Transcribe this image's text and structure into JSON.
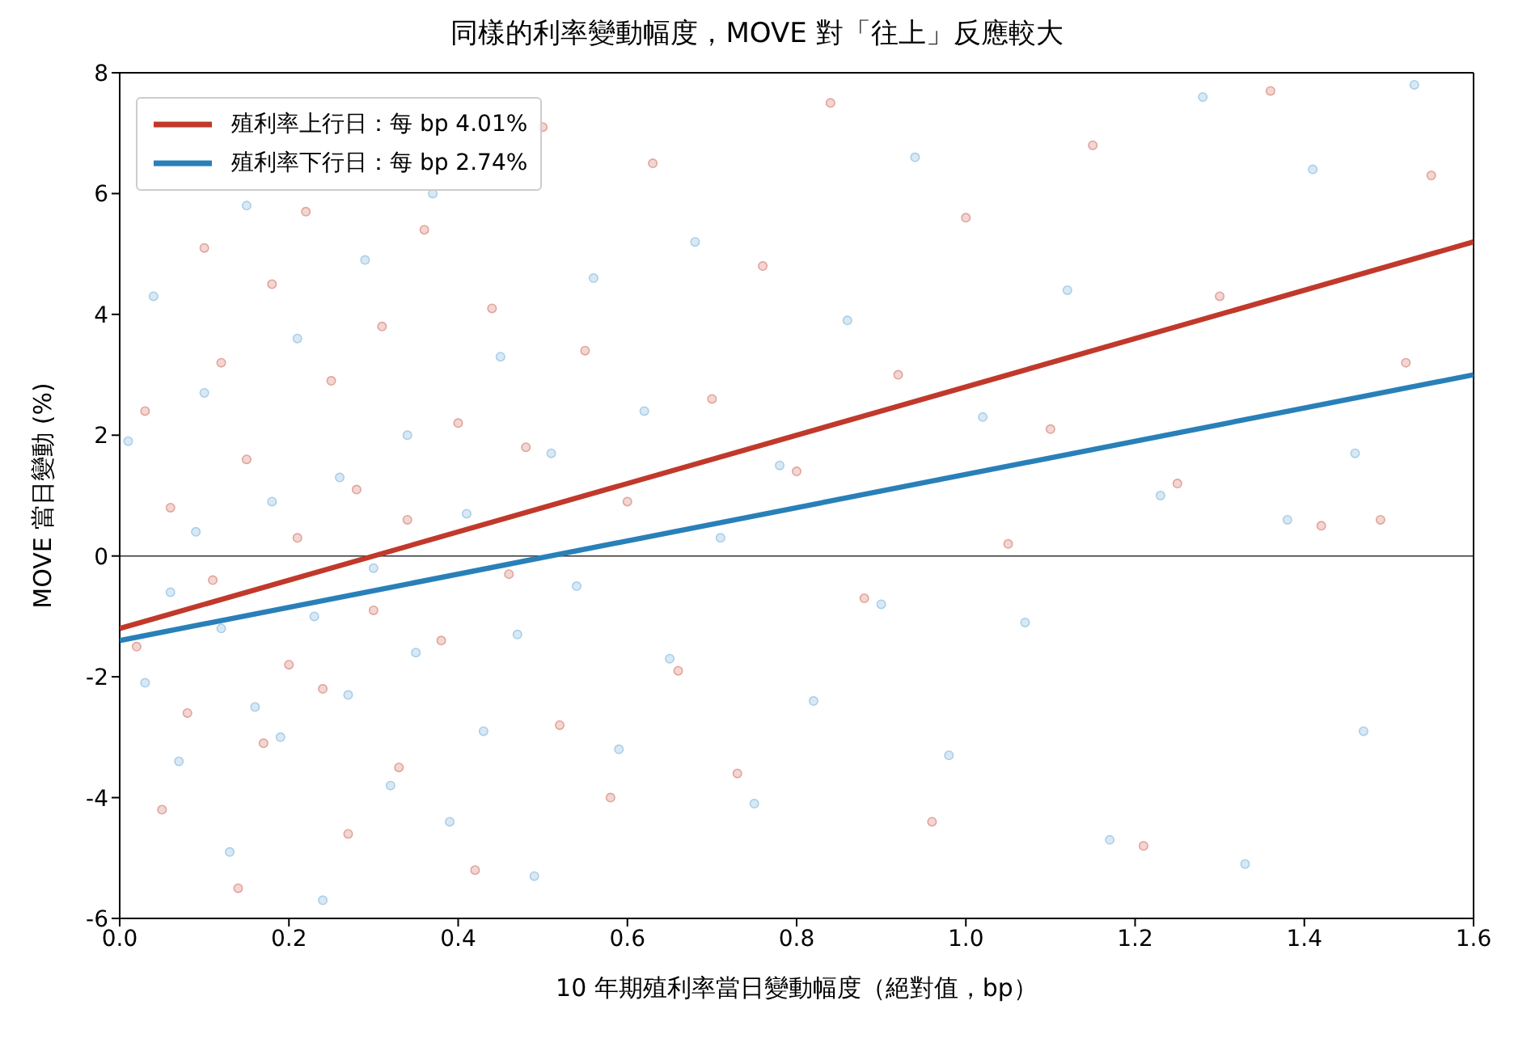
{
  "chart_data": {
    "type": "scatter",
    "title": "同樣的利率變動幅度，MOVE 對「往上」反應較大",
    "xlabel": "10 年期殖利率當日變動幅度（絕對值，bp）",
    "ylabel": "MOVE 當日變動 (%)",
    "xlim": [
      0,
      1.6
    ],
    "xticks": [
      {
        "value": 0,
        "label": "0.0"
      },
      0.2,
      0.4,
      0.6,
      0.8,
      {
        "value": 1,
        "label": "1.0"
      },
      1.2,
      1.4,
      1.6
    ],
    "ylim": [
      -6,
      8
    ],
    "yticks": [
      -6,
      -4,
      -2,
      0,
      2,
      4,
      6,
      8
    ],
    "grid": false,
    "legend": "top left",
    "ref_lines": [
      {
        "axis": "y",
        "value": 0,
        "color": "#333333"
      }
    ],
    "series": [
      {
        "marker": "circle",
        "color": "#e3a39b",
        "x": [
          0.02,
          0.03,
          0.05,
          0.06,
          0.08,
          0.1,
          0.11,
          0.12,
          0.14,
          0.15,
          0.17,
          0.18,
          0.2,
          0.21,
          0.22,
          0.24,
          0.25,
          0.27,
          0.28,
          0.3,
          0.31,
          0.33,
          0.34,
          0.36,
          0.38,
          0.4,
          0.42,
          0.44,
          0.46,
          0.48,
          0.5,
          0.52,
          0.55,
          0.58,
          0.6,
          0.63,
          0.66,
          0.7,
          0.73,
          0.76,
          0.8,
          0.84,
          0.88,
          0.92,
          0.96,
          1.0,
          1.05,
          1.1,
          1.15,
          1.21,
          1.25,
          1.3,
          1.36,
          1.42,
          1.49,
          1.52,
          1.55
        ],
        "values": [
          -1.5,
          2.4,
          -4.2,
          0.8,
          -2.6,
          5.1,
          -0.4,
          3.2,
          -5.5,
          1.6,
          -3.1,
          4.5,
          -1.8,
          0.3,
          5.7,
          -2.2,
          2.9,
          -4.6,
          1.1,
          -0.9,
          3.8,
          -3.5,
          0.6,
          5.4,
          -1.4,
          2.2,
          -5.2,
          4.1,
          -0.3,
          1.8,
          7.1,
          -2.8,
          3.4,
          -4.0,
          0.9,
          6.5,
          -1.9,
          2.6,
          -3.6,
          4.8,
          1.4,
          7.5,
          -0.7,
          3.0,
          -4.4,
          5.6,
          0.2,
          2.1,
          6.8,
          -4.8,
          1.2,
          4.3,
          7.7,
          0.5,
          0.6,
          3.2,
          6.3
        ]
      },
      {
        "marker": "circle",
        "color": "#a9cfe8",
        "x": [
          0.01,
          0.03,
          0.04,
          0.06,
          0.07,
          0.09,
          0.1,
          0.12,
          0.13,
          0.15,
          0.16,
          0.18,
          0.19,
          0.21,
          0.23,
          0.24,
          0.26,
          0.27,
          0.29,
          0.3,
          0.32,
          0.34,
          0.35,
          0.37,
          0.39,
          0.41,
          0.43,
          0.45,
          0.47,
          0.49,
          0.51,
          0.54,
          0.56,
          0.59,
          0.62,
          0.65,
          0.68,
          0.71,
          0.75,
          0.78,
          0.82,
          0.86,
          0.9,
          0.94,
          0.98,
          1.02,
          1.07,
          1.12,
          1.17,
          1.23,
          1.28,
          1.33,
          1.38,
          1.41,
          1.46,
          1.47,
          1.53
        ],
        "values": [
          1.9,
          -2.1,
          4.3,
          -0.6,
          -3.4,
          0.4,
          2.7,
          -1.2,
          -4.9,
          5.8,
          -2.5,
          0.9,
          -3.0,
          3.6,
          -1.0,
          -5.7,
          1.3,
          -2.3,
          4.9,
          -0.2,
          -3.8,
          2.0,
          -1.6,
          6.0,
          -4.4,
          0.7,
          -2.9,
          3.3,
          -1.3,
          -5.3,
          1.7,
          -0.5,
          4.6,
          -3.2,
          2.4,
          -1.7,
          5.2,
          0.3,
          -4.1,
          1.5,
          -2.4,
          3.9,
          -0.8,
          6.6,
          -3.3,
          2.3,
          -1.1,
          4.4,
          -4.7,
          1.0,
          7.6,
          -5.1,
          0.6,
          6.4,
          1.7,
          -2.9,
          7.8
        ]
      },
      {
        "type": "line",
        "marker": "none",
        "line_style": "solid",
        "name": "殖利率上行日：每 bp 4.01%",
        "color": "#c0392b",
        "x": [
          0,
          1.6
        ],
        "values": [
          -1.2,
          5.2
        ]
      },
      {
        "type": "line",
        "marker": "none",
        "line_style": "solid",
        "name": "殖利率下行日：每 bp 2.74%",
        "color": "#2980b9",
        "x": [
          0,
          1.6
        ],
        "values": [
          -1.4,
          3.0
        ]
      }
    ]
  }
}
